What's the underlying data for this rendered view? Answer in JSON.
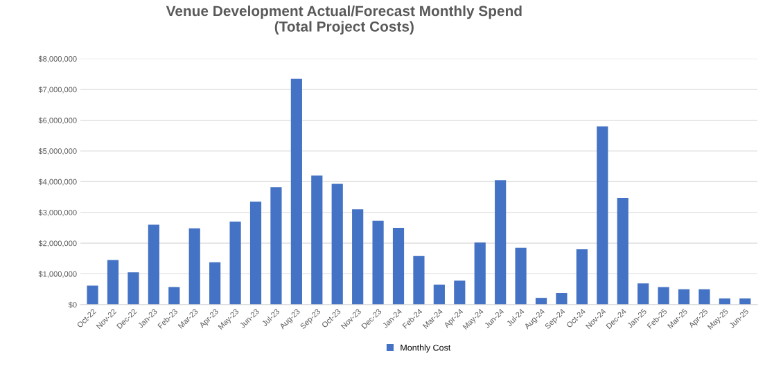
{
  "chart_data": {
    "type": "bar",
    "title": "Venue Development Actual/Forecast Monthly Spend\n(Total Project Costs)",
    "categories": [
      "Oct-22",
      "Nov-22",
      "Dec-22",
      "Jan-23",
      "Feb-23",
      "Mar-23",
      "Apr-23",
      "May-23",
      "Jun-23",
      "Jul-23",
      "Aug-23",
      "Sep-23",
      "Oct-23",
      "Nov-23",
      "Dec-23",
      "Jan-24",
      "Feb-24",
      "Mar-24",
      "Apr-24",
      "May-24",
      "Jun-24",
      "Jul-24",
      "Aug-24",
      "Sep-24",
      "Oct-24",
      "Nov-24",
      "Dec-24",
      "Jan-25",
      "Feb-25",
      "Mar-25",
      "Apr-25",
      "May-25",
      "Jun-25"
    ],
    "series": [
      {
        "name": "Monthly Cost",
        "color": "#4472c4",
        "values": [
          620000,
          1450000,
          1050000,
          2600000,
          570000,
          2480000,
          1380000,
          2700000,
          3350000,
          3820000,
          7350000,
          4200000,
          3930000,
          3100000,
          2730000,
          2500000,
          1580000,
          650000,
          780000,
          2020000,
          4050000,
          1850000,
          220000,
          380000,
          1800000,
          5800000,
          3470000,
          690000,
          570000,
          500000,
          500000,
          200000,
          200000
        ]
      }
    ],
    "ylim": [
      0,
      8000000
    ],
    "yticks": [
      {
        "value": 0,
        "label": "$0"
      },
      {
        "value": 1000000,
        "label": "$1,000,000"
      },
      {
        "value": 2000000,
        "label": "$2,000,000"
      },
      {
        "value": 3000000,
        "label": "$3,000,000"
      },
      {
        "value": 4000000,
        "label": "$4,000,000"
      },
      {
        "value": 5000000,
        "label": "$5,000,000"
      },
      {
        "value": 6000000,
        "label": "$6,000,000"
      },
      {
        "value": 7000000,
        "label": "$7,000,000"
      },
      {
        "value": 8000000,
        "label": "$8,000,000"
      }
    ],
    "grid": "y",
    "legend": "bottom"
  }
}
